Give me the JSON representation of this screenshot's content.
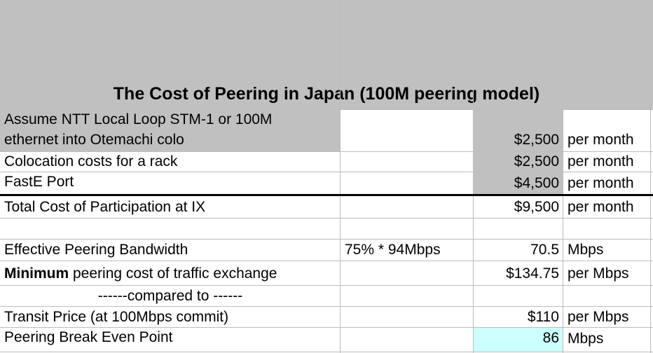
{
  "title": "The Cost of Peering in Japan (100M peering model)",
  "rows": {
    "r1_a_line1": "Assume NTT Local Loop STM-1 or 100M",
    "r1_a_line2": "ethernet into Otemachi colo",
    "r1_c": "$2,500",
    "r1_d": "per month",
    "r2_a": "Colocation costs for a rack",
    "r2_c": "$2,500",
    "r2_d": "per month",
    "r3_a": "FastE Port",
    "r3_c": "$4,500",
    "r3_d": "per month",
    "r4_a": "Total Cost of Participation at IX",
    "r4_c": "$9,500",
    "r4_d": "per month",
    "r6_a": "Effective Peering Bandwidth",
    "r6_b": "75% * 94Mbps",
    "r6_c": "70.5",
    "r6_d": "Mbps",
    "r7_a_bold": "Minimum",
    "r7_a_rest": " peering cost of traffic exchange",
    "r7_c": "$134.75",
    "r7_d": "per Mbps",
    "r8_a": "------compared to ------",
    "r9_a": "Transit Price (at 100Mbps commit)",
    "r9_c": "$110",
    "r9_d": "per Mbps",
    "r10_a": "Peering Break Even Point",
    "r10_c": "86",
    "r10_d": "Mbps"
  },
  "colors": {
    "header_gray": "#c0c0c0",
    "highlight_cyan": "#ccffff",
    "grid": "#bdbdbd"
  }
}
